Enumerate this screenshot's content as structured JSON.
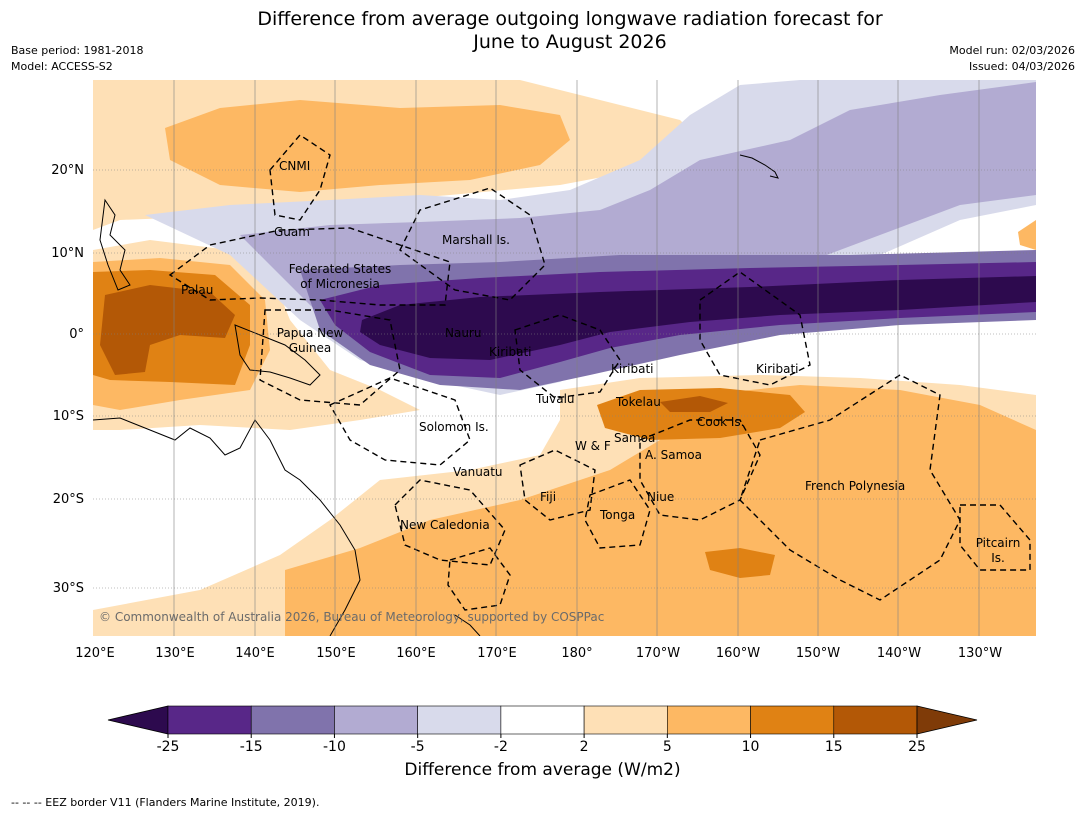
{
  "title_line1": "Difference from average outgoing longwave radiation forecast for",
  "title_line2": "June to August 2026",
  "meta_left": [
    "Base period: 1981-2018",
    "Model: ACCESS-S2"
  ],
  "meta_right": [
    "Model run: 02/03/2026",
    "Issued: 04/03/2026"
  ],
  "lon_labels": [
    "120°E",
    "130°E",
    "140°E",
    "150°E",
    "160°E",
    "170°E",
    "180°",
    "170°W",
    "160°W",
    "150°W",
    "140°W",
    "130°W"
  ],
  "lat_labels": [
    "20°N",
    "10°N",
    "0°",
    "10°S",
    "20°S",
    "30°S"
  ],
  "place_labels": [
    "CNMI",
    "Guam",
    "Marshall Is.",
    "Federated States",
    "of Micronesia",
    "Palau",
    "Papua New",
    "Guinea",
    "Nauru",
    "Kiribati",
    "Kiribati",
    "Kiribati",
    "Tuvalu",
    "Tokelau",
    "Cook Is.",
    "Solomon Is.",
    "W & F",
    "Samoa",
    "A. Samoa",
    "Vanuatu",
    "Fiji",
    "Niue",
    "Tonga",
    "French Polynesia",
    "New Caledonia",
    "Pitcairn",
    "Is."
  ],
  "copyright": "© Commonwealth of Australia 2026, Bureau of Meteorology, supported by COSPPac",
  "colorbar": {
    "ticks": [
      "-25",
      "-15",
      "-10",
      "-5",
      "-2",
      "2",
      "5",
      "10",
      "15",
      "25"
    ],
    "colors": [
      "#2d0a4e",
      "#582788",
      "#8073ac",
      "#b2abd2",
      "#d8daeb",
      "#ffffff",
      "#fee0b6",
      "#fdb863",
      "#e08214",
      "#b35806",
      "#7f3b08"
    ],
    "label": "Difference from average (W/m2)"
  },
  "footer": "-- -- -- EEZ border V11 (Flanders Marine Institute, 2019)."
}
